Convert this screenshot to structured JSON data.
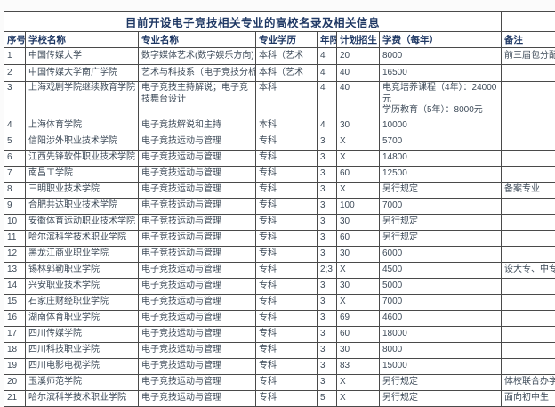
{
  "title": "目前开设电子竞技相关专业的高校名录及相关信息",
  "colors": {
    "border": "#4a4a4a",
    "header_text": "#1f3864",
    "body_text": "#3e4b59",
    "cell_background": "#ffffff"
  },
  "table": {
    "headers": [
      "序号",
      "学校名称",
      "专业名称",
      "专业学历",
      "年限",
      "计划招生",
      "学费（每年）",
      "备注"
    ],
    "rows": [
      [
        "1",
        "中国传媒大学",
        "数字媒体艺术(数字娱乐方向)",
        "本科（艺术",
        "4",
        "20",
        "8000",
        "前三届包分配"
      ],
      [
        "2",
        "中国传媒大学南广学院",
        "艺术与科技系（电子竞技分析",
        "本科（艺术",
        "4",
        "40",
        "16500",
        ""
      ],
      [
        "3",
        "上海戏剧学院继续教育学院",
        "电子竞技主持解说；电子竞技舞台设计",
        "本科",
        "4",
        "40",
        "电竞培养课程（4年）：24000元\n学历教育（5年）：8000元",
        ""
      ],
      [
        "4",
        "上海体育学院",
        "电子竞技解说和主持",
        "本科",
        "4",
        "30",
        "10000",
        ""
      ],
      [
        "5",
        "信阳涉外职业技术学院",
        "电子竞技运动与管理",
        "专科",
        "3",
        "X",
        "5700",
        ""
      ],
      [
        "6",
        "江西先锋软件职业技术学院",
        "电子竞技运动与管理",
        "专科",
        "3",
        "X",
        "14800",
        ""
      ],
      [
        "7",
        "南昌工学院",
        "电子竞技运动与管理",
        "专科",
        "3",
        "60",
        "12500",
        ""
      ],
      [
        "8",
        "三明职业技术学院",
        "电子竞技运动与管理",
        "专科",
        "3",
        "X",
        "另行规定",
        "备案专业"
      ],
      [
        "9",
        "合肥共达职业技术学院",
        "电子竞技运动与管理",
        "专科",
        "3",
        "100",
        "7000",
        ""
      ],
      [
        "10",
        "安徽体育运动职业技术学院",
        "电子竞技运动与管理",
        "专科",
        "3",
        "30",
        "另行规定",
        ""
      ],
      [
        "11",
        "哈尔滨科学技术职业学院",
        "电子竞技运动与管理",
        "专科",
        "3",
        "60",
        "另行规定",
        ""
      ],
      [
        "12",
        "黑龙江商业职业学院",
        "电子竞技运动与管理",
        "专科",
        "3",
        "30",
        "6000",
        ""
      ],
      [
        "13",
        "锡林郭勒职业学院",
        "电子竞技运动与管理",
        "专科",
        "2;3",
        "X",
        "4500",
        "设大专、中专"
      ],
      [
        "14",
        "兴安职业技术学院",
        "电子竞技运动与管理",
        "专科",
        "3",
        "30",
        "5000",
        ""
      ],
      [
        "15",
        "石家庄财经职业学院",
        "电子竞技运动与管理",
        "专科",
        "3",
        "X",
        "7000",
        ""
      ],
      [
        "16",
        "湖南体育职业学院",
        "电子竞技运动与管理",
        "专科",
        "3",
        "69",
        "4600",
        ""
      ],
      [
        "17",
        "四川传媒学院",
        "电子竞技运动与管理",
        "专科",
        "3",
        "60",
        "18000",
        ""
      ],
      [
        "18",
        "四川科技职业学院",
        "电子竞技运动与管理",
        "专科",
        "3",
        "30",
        "8000",
        ""
      ],
      [
        "19",
        "四川电影电视学院",
        "电子竞技运动与管理",
        "专科",
        "3",
        "83",
        "15000",
        ""
      ],
      [
        "20",
        "玉溪师范学院",
        "电子竞技运动与管理",
        "专科",
        "3",
        "X",
        "另行规定",
        "体校联合办学"
      ],
      [
        "21",
        "哈尔滨科学技术职业学院",
        "电子竞技运动与管理",
        "专科",
        "5",
        "X",
        "另行规定",
        "面向初中生"
      ]
    ]
  }
}
